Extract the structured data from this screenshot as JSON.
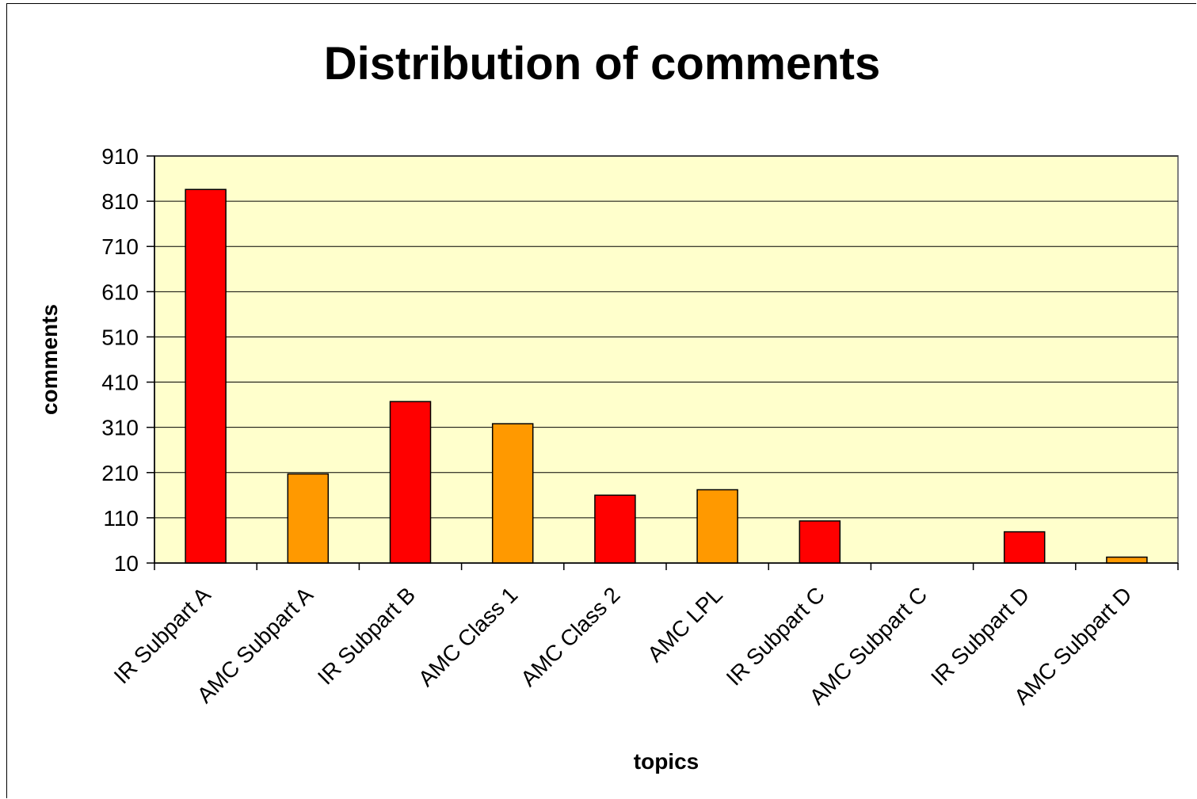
{
  "chart_data": {
    "type": "bar",
    "title": "Distribution of comments",
    "xlabel": "topics",
    "ylabel": "comments",
    "ylim": [
      10,
      910
    ],
    "yticks": [
      10,
      110,
      210,
      310,
      410,
      510,
      610,
      710,
      810,
      910
    ],
    "grid": true,
    "legend": "none",
    "plot_background": "#FFFFCC",
    "categories": [
      "IR Subpart A",
      "AMC Subpart A",
      "IR Subpart B",
      "AMC Class 1",
      "AMC Class 2",
      "AMC LPL",
      "IR Subpart C",
      "AMC Subpart C",
      "IR Subpart D",
      "AMC Subpart D"
    ],
    "values": [
      836,
      207,
      367,
      318,
      160,
      172,
      103,
      10,
      79,
      23
    ],
    "bar_colors": [
      "#FF0000",
      "#FF9900",
      "#FF0000",
      "#FF9900",
      "#FF0000",
      "#FF9900",
      "#FF0000",
      "#FF9900",
      "#FF0000",
      "#FF9900"
    ]
  }
}
